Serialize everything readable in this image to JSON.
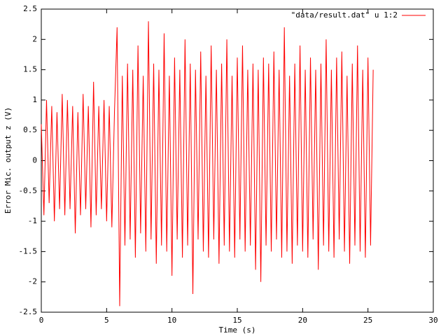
{
  "chart_data": {
    "type": "line",
    "x_label": "Time (s)",
    "y_label": "Error Mic. output z (V)",
    "xlim": [
      0,
      30
    ],
    "ylim": [
      -2.5,
      2.5
    ],
    "xticks": [
      0,
      5,
      10,
      15,
      20,
      25,
      30
    ],
    "yticks": [
      -2.5,
      -2,
      -1.5,
      -1,
      -0.5,
      0,
      0.5,
      1,
      1.5,
      2,
      2.5
    ],
    "grid": false,
    "legend": "top-right",
    "x": [
      0,
      0.2,
      0.4,
      0.6,
      0.8,
      1,
      1.2,
      1.4,
      1.6,
      1.8,
      2,
      2.2,
      2.4,
      2.6,
      2.8,
      3,
      3.2,
      3.4,
      3.6,
      3.8,
      4,
      4.2,
      4.4,
      4.6,
      4.8,
      5,
      5.2,
      5.4,
      5.6,
      5.8,
      6,
      6.2,
      6.4,
      6.6,
      6.8,
      7,
      7.2,
      7.4,
      7.6,
      7.8,
      8,
      8.2,
      8.4,
      8.6,
      8.8,
      9,
      9.2,
      9.4,
      9.6,
      9.8,
      10,
      10.2,
      10.4,
      10.6,
      10.8,
      11,
      11.2,
      11.4,
      11.6,
      11.8,
      12,
      12.2,
      12.4,
      12.6,
      12.8,
      13,
      13.2,
      13.4,
      13.6,
      13.8,
      14,
      14.2,
      14.4,
      14.6,
      14.8,
      15,
      15.2,
      15.4,
      15.6,
      15.8,
      16,
      16.2,
      16.4,
      16.6,
      16.8,
      17,
      17.2,
      17.4,
      17.6,
      17.8,
      18,
      18.2,
      18.4,
      18.6,
      18.8,
      19,
      19.2,
      19.4,
      19.6,
      19.8,
      20,
      20.2,
      20.4,
      20.6,
      20.8,
      21,
      21.2,
      21.4,
      21.6,
      21.8,
      22,
      22.2,
      22.4,
      22.6,
      22.8,
      23,
      23.2,
      23.4,
      23.6,
      23.8,
      24,
      24.2,
      24.4,
      24.6,
      24.8,
      25,
      25.2,
      25.4
    ],
    "series": [
      {
        "name": "\"data/result.dat\" u 1:2",
        "color": "#ff0000",
        "values": [
          0.6,
          -0.9,
          1.0,
          -0.7,
          0.9,
          -1.0,
          0.8,
          -0.8,
          1.1,
          -0.9,
          1.0,
          -0.8,
          0.9,
          -1.2,
          0.8,
          -0.9,
          1.1,
          -0.8,
          0.9,
          -1.1,
          1.3,
          -0.9,
          0.9,
          -0.8,
          1.0,
          -1.0,
          0.9,
          -1.1,
          0.8,
          2.2,
          -2.4,
          1.4,
          -1.4,
          1.6,
          -1.3,
          1.5,
          -1.6,
          1.9,
          -1.2,
          1.4,
          -1.5,
          2.3,
          -1.3,
          1.6,
          -1.7,
          1.5,
          -1.4,
          2.1,
          -1.5,
          1.4,
          -1.9,
          1.7,
          -1.3,
          1.5,
          -1.6,
          2.0,
          -1.4,
          1.6,
          -2.2,
          1.5,
          -1.3,
          1.8,
          -1.5,
          1.4,
          -1.6,
          1.9,
          -1.3,
          1.5,
          -1.7,
          1.6,
          -1.4,
          2.0,
          -1.5,
          1.4,
          -1.6,
          1.7,
          -1.3,
          1.9,
          -1.5,
          1.5,
          -1.4,
          1.6,
          -1.8,
          1.5,
          -2.0,
          1.7,
          -1.4,
          1.6,
          -1.5,
          1.8,
          -1.3,
          1.5,
          -1.6,
          2.2,
          -1.5,
          1.4,
          -1.7,
          1.6,
          -1.4,
          1.9,
          -1.5,
          1.5,
          -1.6,
          1.7,
          -1.3,
          1.5,
          -1.8,
          1.6,
          -1.4,
          2.0,
          -1.5,
          1.5,
          -1.6,
          1.7,
          -1.3,
          1.8,
          -1.5,
          1.4,
          -1.7,
          1.6,
          -1.4,
          1.9,
          -1.5,
          1.5,
          -1.6,
          1.7,
          -1.4,
          1.5
        ]
      }
    ]
  }
}
